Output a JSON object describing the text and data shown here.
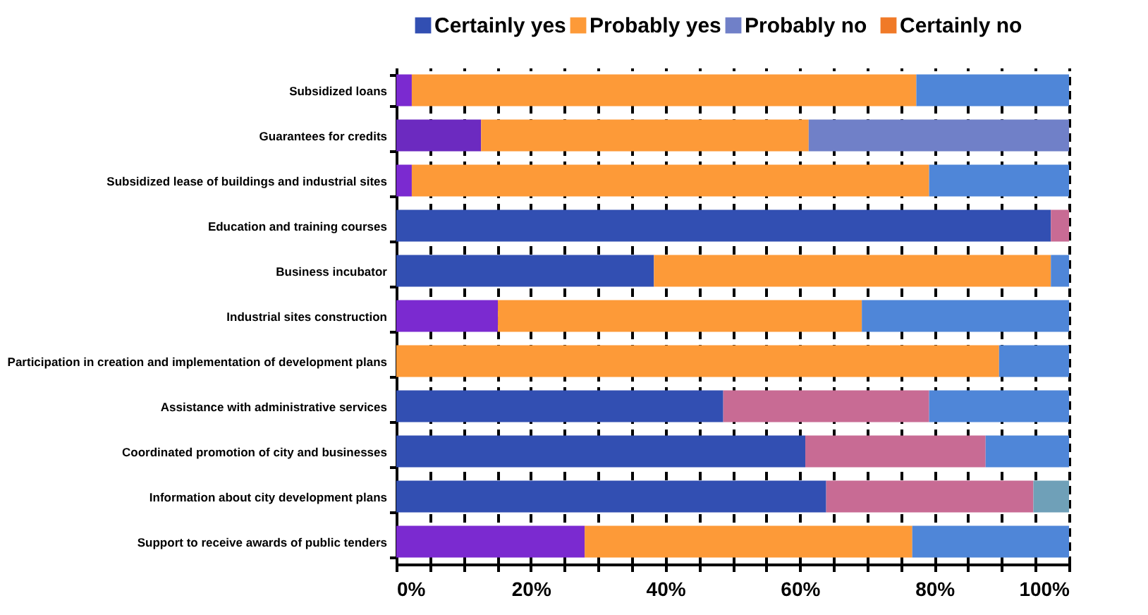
{
  "chart_data": {
    "type": "bar",
    "orientation": "horizontal",
    "stacked": true,
    "categories": [
      "Subsidized loans",
      "Guarantees for credits",
      "Subsidized lease of buildings and industrial sites",
      "Education and training courses",
      "Business incubator",
      "Industrial sites construction",
      "Participation in creation and implementation of development plans",
      "Assistance with administrative services",
      "Coordinated promotion of city and businesses",
      "Information about city development plans",
      "Support to receive awards of public tenders"
    ],
    "series": [
      {
        "name": "Certainly yes",
        "color": "#324fb2",
        "values": [
          2.3,
          12.6,
          2.3,
          97.3,
          38.3,
          15.1,
          89.6,
          48.6,
          60.8,
          63.9,
          28.0
        ],
        "colors": [
          "#7b2ad0",
          "#6c2ac0",
          "#7b2ad0",
          "#324fb2",
          "#324fb2",
          "#7b2ad0",
          "#fd9a38",
          "#324fb2",
          "#324fb2",
          "#324fb2",
          "#7b2ad0"
        ]
      },
      {
        "name": "Probably yes",
        "color": "#fd9a38",
        "values": [
          75.0,
          48.7,
          76.9,
          2.7,
          59.0,
          54.1,
          10.4,
          30.6,
          26.8,
          30.8,
          48.7
        ],
        "colors": [
          "#fd9a38",
          "#fd9a38",
          "#fd9a38",
          "#c86b94",
          "#fd9a38",
          "#fd9a38",
          "#4f86d8",
          "#c86b94",
          "#c86b94",
          "#c86b94",
          "#fd9a38"
        ]
      },
      {
        "name": "Probably no",
        "color": "#7080c8",
        "values": [
          22.7,
          38.7,
          20.8,
          null,
          2.7,
          30.8,
          null,
          20.8,
          12.4,
          5.3,
          23.3
        ],
        "colors": [
          "#4f86d8",
          "#7080c8",
          "#4f86d8",
          null,
          "#4f86d8",
          "#4f86d8",
          null,
          "#4f86d8",
          "#4f86d8",
          "#6fa0b8",
          "#4f86d8"
        ]
      },
      {
        "name": "Certainly no",
        "color": "#f07a28",
        "values": [
          null,
          null,
          null,
          null,
          null,
          null,
          null,
          null,
          null,
          null,
          null
        ]
      }
    ],
    "xlim": [
      0,
      100
    ],
    "xticks": [
      {
        "value": 0,
        "label": "0%"
      },
      {
        "value": 5,
        "label": null
      },
      {
        "value": 10,
        "label": null
      },
      {
        "value": 15,
        "label": null
      },
      {
        "value": 20,
        "label": "20%"
      },
      {
        "value": 25,
        "label": null
      },
      {
        "value": 30,
        "label": null
      },
      {
        "value": 35,
        "label": null
      },
      {
        "value": 40,
        "label": "40%"
      },
      {
        "value": 45,
        "label": null
      },
      {
        "value": 50,
        "label": null
      },
      {
        "value": 55,
        "label": null
      },
      {
        "value": 60,
        "label": "60%"
      },
      {
        "value": 65,
        "label": null
      },
      {
        "value": 70,
        "label": null
      },
      {
        "value": 75,
        "label": null
      },
      {
        "value": 80,
        "label": "80%"
      },
      {
        "value": 85,
        "label": null
      },
      {
        "value": 90,
        "label": null
      },
      {
        "value": 95,
        "label": null
      },
      {
        "value": 100,
        "label": "100%"
      }
    ],
    "grid": "x",
    "legend": "top"
  }
}
